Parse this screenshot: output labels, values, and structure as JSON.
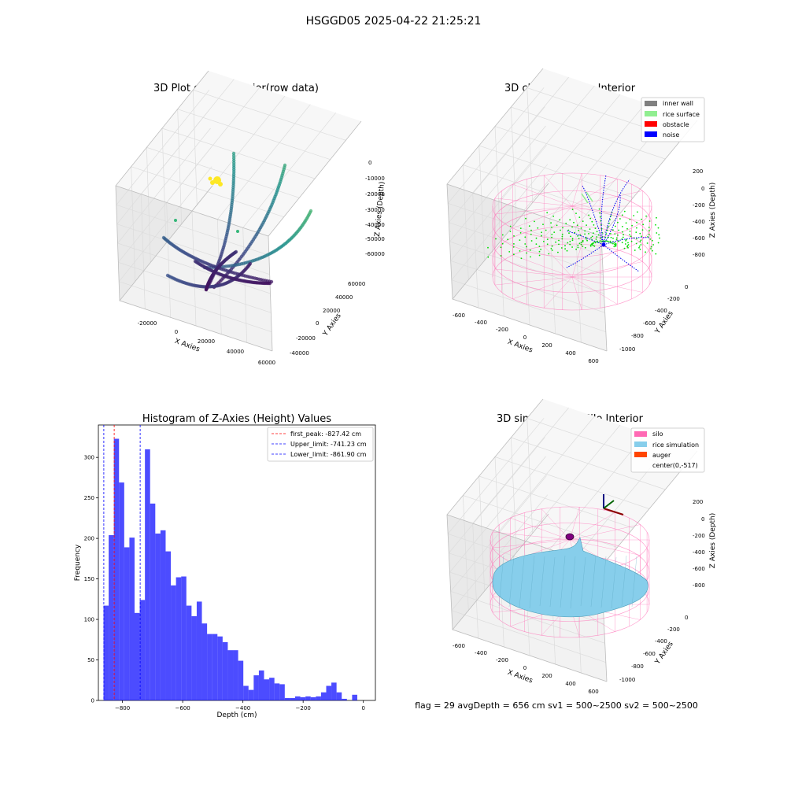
{
  "suptitle": "HSGGD05 2025-04-22 21:25:21",
  "panels": {
    "raw": {
      "title": "3D Plot of Silo Interior(row data)",
      "xlabel": "X Axies",
      "ylabel": "Y Axies",
      "zlabel": "Z Axies (Depth)",
      "xticks": [
        "-20000",
        "0",
        "20000",
        "40000",
        "60000"
      ],
      "yticks": [
        "-40000",
        "-20000",
        "0",
        "20000",
        "40000",
        "60000"
      ],
      "zticks": [
        "0",
        "-10000",
        "-20000",
        "-30000",
        "-40000",
        "-50000",
        "-60000"
      ]
    },
    "classify": {
      "title": "3D classify of Silo Interior",
      "xlabel": "X Axies",
      "ylabel": "Y Axies",
      "zlabel": "Z Axies (Depth)",
      "xticks": [
        "-600",
        "-400",
        "-200",
        "0",
        "200",
        "400",
        "600"
      ],
      "yticks": [
        "-1000",
        "-800",
        "-600",
        "-400",
        "-200",
        "0"
      ],
      "zticks": [
        "200",
        "0",
        "-200",
        "-400",
        "-600",
        "-800"
      ],
      "legend": [
        {
          "label": "inner wall",
          "color": "#808080"
        },
        {
          "label": "rice surface",
          "color": "#90ee90"
        },
        {
          "label": "obstacle",
          "color": "#ff0000"
        },
        {
          "label": "noise",
          "color": "#0000ff"
        }
      ]
    },
    "simulation": {
      "title": "3D simulation of Silo Interior",
      "xlabel": "X Axies",
      "ylabel": "Y Axies",
      "zlabel": "Z Axies (Depth)",
      "xticks": [
        "-600",
        "-400",
        "-200",
        "0",
        "200",
        "400",
        "600"
      ],
      "yticks": [
        "-1000",
        "-800",
        "-600",
        "-400",
        "-200",
        "0"
      ],
      "zticks": [
        "200",
        "0",
        "-200",
        "-400",
        "-600",
        "-800"
      ],
      "legend": [
        {
          "label": "silo",
          "color": "#ff69b4"
        },
        {
          "label": "rice simulation",
          "color": "#87ceeb"
        },
        {
          "label": "auger",
          "color": "#ff4500"
        },
        {
          "label": "center(0,-517)",
          "color": ""
        }
      ]
    }
  },
  "status": "flag = 29  avgDepth = 656 cm  sv1 = 500~2500  sv2 = 500~2500",
  "chart_data": [
    {
      "type": "scatter",
      "title": "3D Plot of Silo Interior(row data)",
      "xlabel": "X Axies",
      "ylabel": "Y Axies",
      "zlabel": "Z Axies (Depth)",
      "xlim": [
        -30000,
        65000
      ],
      "ylim": [
        -45000,
        65000
      ],
      "zlim": [
        -65000,
        3000
      ]
    },
    {
      "type": "scatter",
      "title": "3D classify of Silo Interior",
      "xlabel": "X Axies",
      "ylabel": "Y Axies",
      "zlabel": "Z Axies (Depth)",
      "xlim": [
        -650,
        650
      ],
      "ylim": [
        -1100,
        100
      ],
      "zlim": [
        -900,
        300
      ],
      "series": [
        {
          "name": "inner wall"
        },
        {
          "name": "rice surface"
        },
        {
          "name": "obstacle"
        },
        {
          "name": "noise"
        }
      ]
    },
    {
      "type": "bar",
      "title": "Histogram of Z-Axies (Height) Values",
      "xlabel": "Depth (cm)",
      "ylabel": "Frequency",
      "xlim": [
        -880,
        40
      ],
      "ylim": [
        0,
        340
      ],
      "xticks": [
        -800,
        -600,
        -400,
        -200,
        0
      ],
      "yticks": [
        0,
        50,
        100,
        150,
        200,
        250,
        300
      ],
      "bin_width": 17.2,
      "bin_start": -863,
      "values": [
        117,
        204,
        323,
        269,
        189,
        201,
        108,
        124,
        310,
        243,
        206,
        210,
        184,
        142,
        152,
        153,
        117,
        104,
        122,
        95,
        82,
        82,
        79,
        72,
        62,
        62,
        49,
        18,
        13,
        31,
        37,
        26,
        28,
        21,
        20,
        3,
        3,
        5,
        4,
        5,
        4,
        5,
        10,
        18,
        22,
        10,
        2,
        0,
        7
      ],
      "vlines": [
        {
          "name": "first_peak: -827.42 cm",
          "value": -827.42,
          "color": "#ff0000"
        },
        {
          "name": "Upper_limit: -741.23 cm",
          "value": -741.23,
          "color": "#0000ff"
        },
        {
          "name": "Lower_limit: -861.90 cm",
          "value": -861.9,
          "color": "#0000ff"
        }
      ]
    },
    {
      "type": "surface",
      "title": "3D simulation of Silo Interior",
      "xlabel": "X Axies",
      "ylabel": "Y Axies",
      "zlabel": "Z Axies (Depth)",
      "xlim": [
        -650,
        650
      ],
      "ylim": [
        -1100,
        100
      ],
      "zlim": [
        -900,
        300
      ],
      "series": [
        {
          "name": "silo"
        },
        {
          "name": "rice simulation"
        },
        {
          "name": "auger"
        },
        {
          "name": "center(0,-517)"
        }
      ]
    }
  ]
}
